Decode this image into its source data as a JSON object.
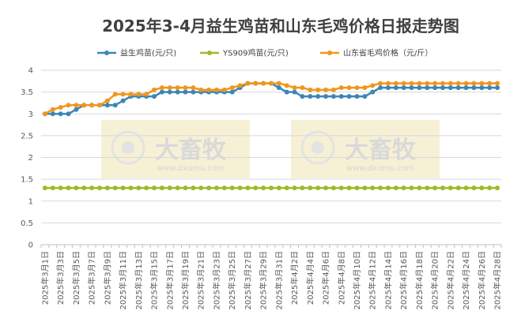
{
  "chart_data": {
    "type": "line",
    "title": "2025年3-4月益生鸡苗和山东毛鸡价格日报走势图",
    "xlabel": "",
    "ylabel": "",
    "ylim": [
      0,
      4
    ],
    "yticks": [
      "0",
      "0.5",
      "1",
      "1.5",
      "2",
      "2.5",
      "3",
      "3.5",
      "4"
    ],
    "grid": true,
    "legend_position": "top",
    "x": [
      "2025年3月1日",
      "2025年3月2日",
      "2025年3月3日",
      "2025年3月4日",
      "2025年3月5日",
      "2025年3月6日",
      "2025年3月7日",
      "2025年3月8日",
      "2025年3月9日",
      "2025年3月10日",
      "2025年3月11日",
      "2025年3月12日",
      "2025年3月13日",
      "2025年3月14日",
      "2025年3月15日",
      "2025年3月16日",
      "2025年3月17日",
      "2025年3月18日",
      "2025年3月19日",
      "2025年3月20日",
      "2025年3月21日",
      "2025年3月22日",
      "2025年3月23日",
      "2025年3月24日",
      "2025年3月25日",
      "2025年3月26日",
      "2025年3月27日",
      "2025年3月28日",
      "2025年3月29日",
      "2025年3月30日",
      "2025年3月31日",
      "2025年4月1日",
      "2025年4月2日",
      "2025年4月3日",
      "2025年4月4日",
      "2025年4月5日",
      "2025年4月6日",
      "2025年4月7日",
      "2025年4月8日",
      "2025年4月9日",
      "2025年4月10日",
      "2025年4月11日",
      "2025年4月12日",
      "2025年4月13日",
      "2025年4月14日",
      "2025年4月15日",
      "2025年4月16日",
      "2025年4月17日",
      "2025年4月18日",
      "2025年4月19日",
      "2025年4月20日",
      "2025年4月21日",
      "2025年4月22日",
      "2025年4月23日",
      "2025年4月24日",
      "2025年4月25日",
      "2025年4月26日",
      "2025年4月27日",
      "2025年4月28日"
    ],
    "xtick_labels": [
      "2025年3月1日",
      "2025年3月3日",
      "2025年3月5日",
      "2025年3月7日",
      "2025年3月9日",
      "2025年3月11日",
      "2025年3月13日",
      "2025年3月15日",
      "2025年3月17日",
      "2025年3月19日",
      "2025年3月21日",
      "2025年3月23日",
      "2025年3月25日",
      "2025年3月27日",
      "2025年3月29日",
      "2025年3月31日",
      "2025年4月2日",
      "2025年4月4日",
      "2025年4月6日",
      "2025年4月8日",
      "2025年4月10日",
      "2025年4月12日",
      "2025年4月14日",
      "2025年4月16日",
      "2025年4月18日",
      "2025年4月20日",
      "2025年4月22日",
      "2025年4月24日",
      "2025年4月26日",
      "2025年4月28日"
    ],
    "series": [
      {
        "name": "益生鸡苗(元/只)",
        "color": "#3a87b7",
        "values": [
          3.0,
          3.0,
          3.0,
          3.0,
          3.1,
          3.2,
          3.2,
          3.2,
          3.2,
          3.2,
          3.3,
          3.4,
          3.4,
          3.4,
          3.4,
          3.5,
          3.5,
          3.5,
          3.5,
          3.5,
          3.5,
          3.5,
          3.5,
          3.5,
          3.5,
          3.6,
          3.7,
          3.7,
          3.7,
          3.7,
          3.6,
          3.5,
          3.5,
          3.4,
          3.4,
          3.4,
          3.4,
          3.4,
          3.4,
          3.4,
          3.4,
          3.4,
          3.5,
          3.6,
          3.6,
          3.6,
          3.6,
          3.6,
          3.6,
          3.6,
          3.6,
          3.6,
          3.6,
          3.6,
          3.6,
          3.6,
          3.6,
          3.6,
          3.6
        ]
      },
      {
        "name": "YS909鸡苗(元/只)",
        "color": "#9bbb2a",
        "values": [
          1.3,
          1.3,
          1.3,
          1.3,
          1.3,
          1.3,
          1.3,
          1.3,
          1.3,
          1.3,
          1.3,
          1.3,
          1.3,
          1.3,
          1.3,
          1.3,
          1.3,
          1.3,
          1.3,
          1.3,
          1.3,
          1.3,
          1.3,
          1.3,
          1.3,
          1.3,
          1.3,
          1.3,
          1.3,
          1.3,
          1.3,
          1.3,
          1.3,
          1.3,
          1.3,
          1.3,
          1.3,
          1.3,
          1.3,
          1.3,
          1.3,
          1.3,
          1.3,
          1.3,
          1.3,
          1.3,
          1.3,
          1.3,
          1.3,
          1.3,
          1.3,
          1.3,
          1.3,
          1.3,
          1.3,
          1.3,
          1.3,
          1.3,
          1.3
        ]
      },
      {
        "name": "山东省毛鸡价格（元/斤）",
        "color": "#f0961e",
        "values": [
          3.0,
          3.1,
          3.15,
          3.2,
          3.2,
          3.2,
          3.2,
          3.2,
          3.3,
          3.45,
          3.45,
          3.45,
          3.45,
          3.45,
          3.55,
          3.6,
          3.6,
          3.6,
          3.6,
          3.6,
          3.55,
          3.55,
          3.55,
          3.55,
          3.6,
          3.65,
          3.7,
          3.7,
          3.7,
          3.7,
          3.7,
          3.65,
          3.6,
          3.6,
          3.55,
          3.55,
          3.55,
          3.55,
          3.6,
          3.6,
          3.6,
          3.6,
          3.65,
          3.7,
          3.7,
          3.7,
          3.7,
          3.7,
          3.7,
          3.7,
          3.7,
          3.7,
          3.7,
          3.7,
          3.7,
          3.7,
          3.7,
          3.7,
          3.7
        ]
      }
    ]
  },
  "watermarks": [
    {
      "text": "大畜牧",
      "url": "www.dxumu.com"
    },
    {
      "text": "大畜牧",
      "url": "www.dxumu.com"
    }
  ]
}
